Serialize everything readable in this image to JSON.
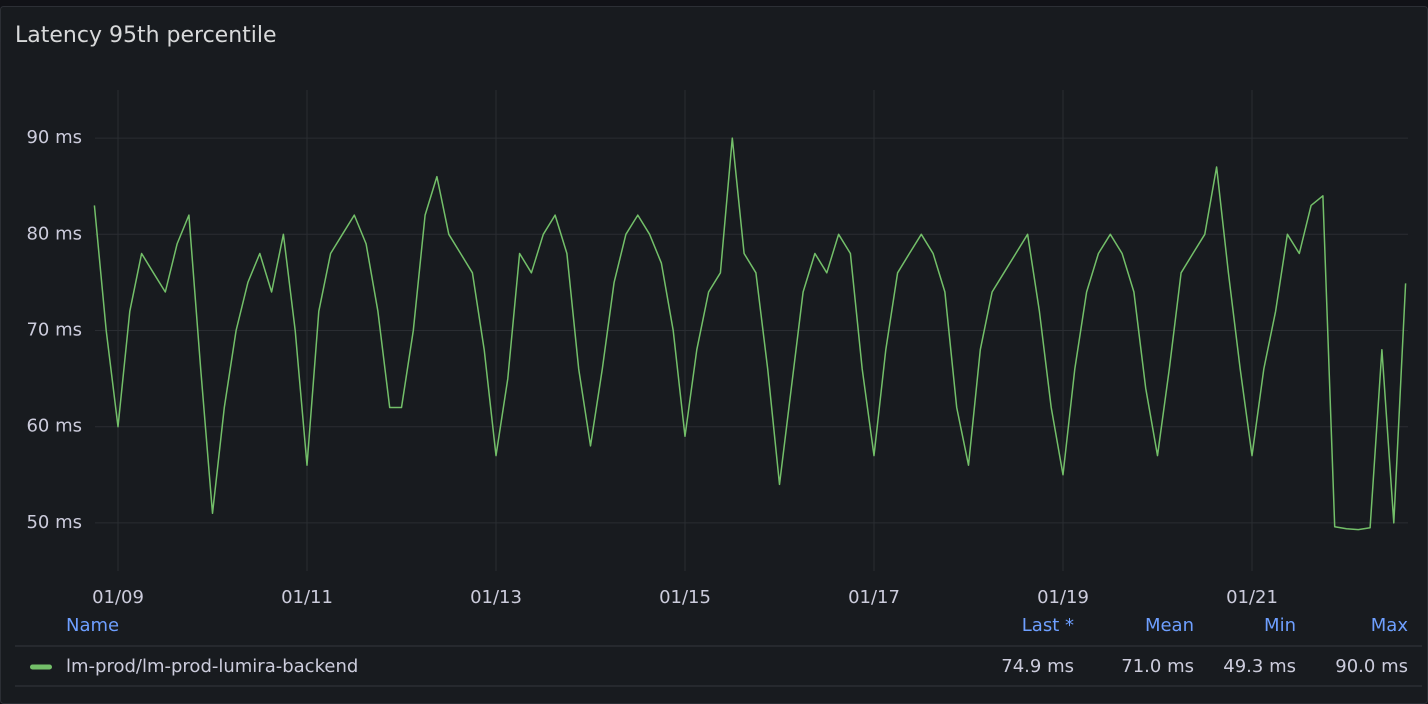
{
  "chart_data": {
    "type": "line",
    "title": "Latency 95th percentile",
    "categories": [
      null,
      null,
      "01/09",
      null,
      null,
      null,
      null,
      null,
      null,
      null,
      null,
      null,
      null,
      null,
      null,
      null,
      null,
      null,
      "01/11",
      null,
      null,
      null,
      null,
      null,
      null,
      null,
      null,
      null,
      null,
      null,
      null,
      null,
      null,
      null,
      "01/13",
      null,
      null,
      null,
      null,
      null,
      null,
      null,
      null,
      null,
      null,
      null,
      null,
      null,
      null,
      null,
      "01/15",
      null,
      null,
      null,
      null,
      null,
      null,
      null,
      null,
      null,
      null,
      null,
      null,
      null,
      null,
      null,
      "01/17",
      null,
      null,
      null,
      null,
      null,
      null,
      null,
      null,
      null,
      null,
      null,
      null,
      null,
      null,
      null,
      "01/19",
      null,
      null,
      null,
      null,
      null,
      null,
      null,
      null,
      null,
      null,
      null,
      null,
      null,
      null,
      null,
      "01/21",
      null,
      null,
      null,
      null,
      null,
      null,
      null,
      null,
      null,
      null,
      null,
      null,
      null
    ],
    "series": [
      {
        "name": "lm-prod/lm-prod-lumira-backend",
        "color": "#73bf69",
        "values": [
          83,
          70,
          60,
          72,
          78,
          76,
          74,
          79,
          82,
          66,
          51,
          62,
          70,
          75,
          78,
          74,
          80,
          70,
          56,
          72,
          78,
          80,
          82,
          79,
          72,
          62,
          62,
          70,
          82,
          86,
          80,
          78,
          76,
          68,
          57,
          65,
          78,
          76,
          80,
          82,
          78,
          66,
          58,
          66,
          75,
          80,
          82,
          80,
          77,
          70,
          59,
          68,
          74,
          76,
          90,
          78,
          76,
          66,
          54,
          64,
          74,
          78,
          76,
          80,
          78,
          66,
          57,
          68,
          76,
          78,
          80,
          78,
          74,
          62,
          56,
          68,
          74,
          76,
          78,
          80,
          72,
          62,
          55,
          66,
          74,
          78,
          80,
          78,
          74,
          64,
          57,
          66,
          76,
          78,
          80,
          87,
          76,
          66,
          57,
          66,
          72,
          80,
          78,
          83,
          84,
          49.6,
          49.4,
          49.3,
          49.5,
          68,
          50,
          74.9
        ],
        "legend_values": [
          "74.9 ms",
          "71.0 ms",
          "49.3 ms",
          "90.0 ms"
        ]
      }
    ],
    "legend_columns": [
      "Name",
      "Last *",
      "Mean",
      "Min",
      "Max"
    ],
    "ylim": [
      45,
      95
    ],
    "yticks": [
      {
        "value": 50,
        "label": "50 ms"
      },
      {
        "value": 60,
        "label": "60 ms"
      },
      {
        "value": 70,
        "label": "70 ms"
      },
      {
        "value": 80,
        "label": "80 ms"
      },
      {
        "value": 90,
        "label": "90 ms"
      }
    ],
    "grid": true
  }
}
